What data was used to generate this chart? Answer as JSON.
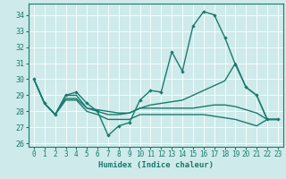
{
  "xlabel": "Humidex (Indice chaleur)",
  "xlim": [
    -0.5,
    23.5
  ],
  "ylim": [
    25.8,
    34.7
  ],
  "yticks": [
    26,
    27,
    28,
    29,
    30,
    31,
    32,
    33,
    34
  ],
  "xticks": [
    0,
    1,
    2,
    3,
    4,
    5,
    6,
    7,
    8,
    9,
    10,
    11,
    12,
    13,
    14,
    15,
    16,
    17,
    18,
    19,
    20,
    21,
    22,
    23
  ],
  "bg_color": "#ceeaea",
  "grid_color": "#b8d8d8",
  "line_color": "#1a7a6e",
  "main_line": [
    30.0,
    28.5,
    27.8,
    29.0,
    29.2,
    28.5,
    28.0,
    26.5,
    27.1,
    27.3,
    28.7,
    29.3,
    29.2,
    31.7,
    30.5,
    33.3,
    34.2,
    34.0,
    32.6,
    30.9,
    29.5,
    29.0,
    27.5,
    27.5
  ],
  "line2": [
    30.0,
    28.5,
    27.8,
    29.0,
    29.0,
    28.2,
    28.0,
    27.8,
    27.8,
    27.9,
    28.2,
    28.4,
    28.5,
    28.6,
    28.7,
    29.0,
    29.3,
    29.6,
    29.9,
    31.0,
    29.5,
    29.0,
    27.5,
    27.5
  ],
  "line3": [
    30.0,
    28.5,
    27.8,
    28.8,
    28.8,
    28.2,
    28.1,
    28.0,
    27.9,
    27.9,
    28.2,
    28.2,
    28.2,
    28.2,
    28.2,
    28.2,
    28.3,
    28.4,
    28.4,
    28.3,
    28.1,
    27.9,
    27.5,
    27.5
  ],
  "line4": [
    30.0,
    28.5,
    27.8,
    28.7,
    28.7,
    28.0,
    27.8,
    27.5,
    27.5,
    27.5,
    27.8,
    27.8,
    27.8,
    27.8,
    27.8,
    27.8,
    27.8,
    27.7,
    27.6,
    27.5,
    27.3,
    27.1,
    27.5,
    27.5
  ]
}
